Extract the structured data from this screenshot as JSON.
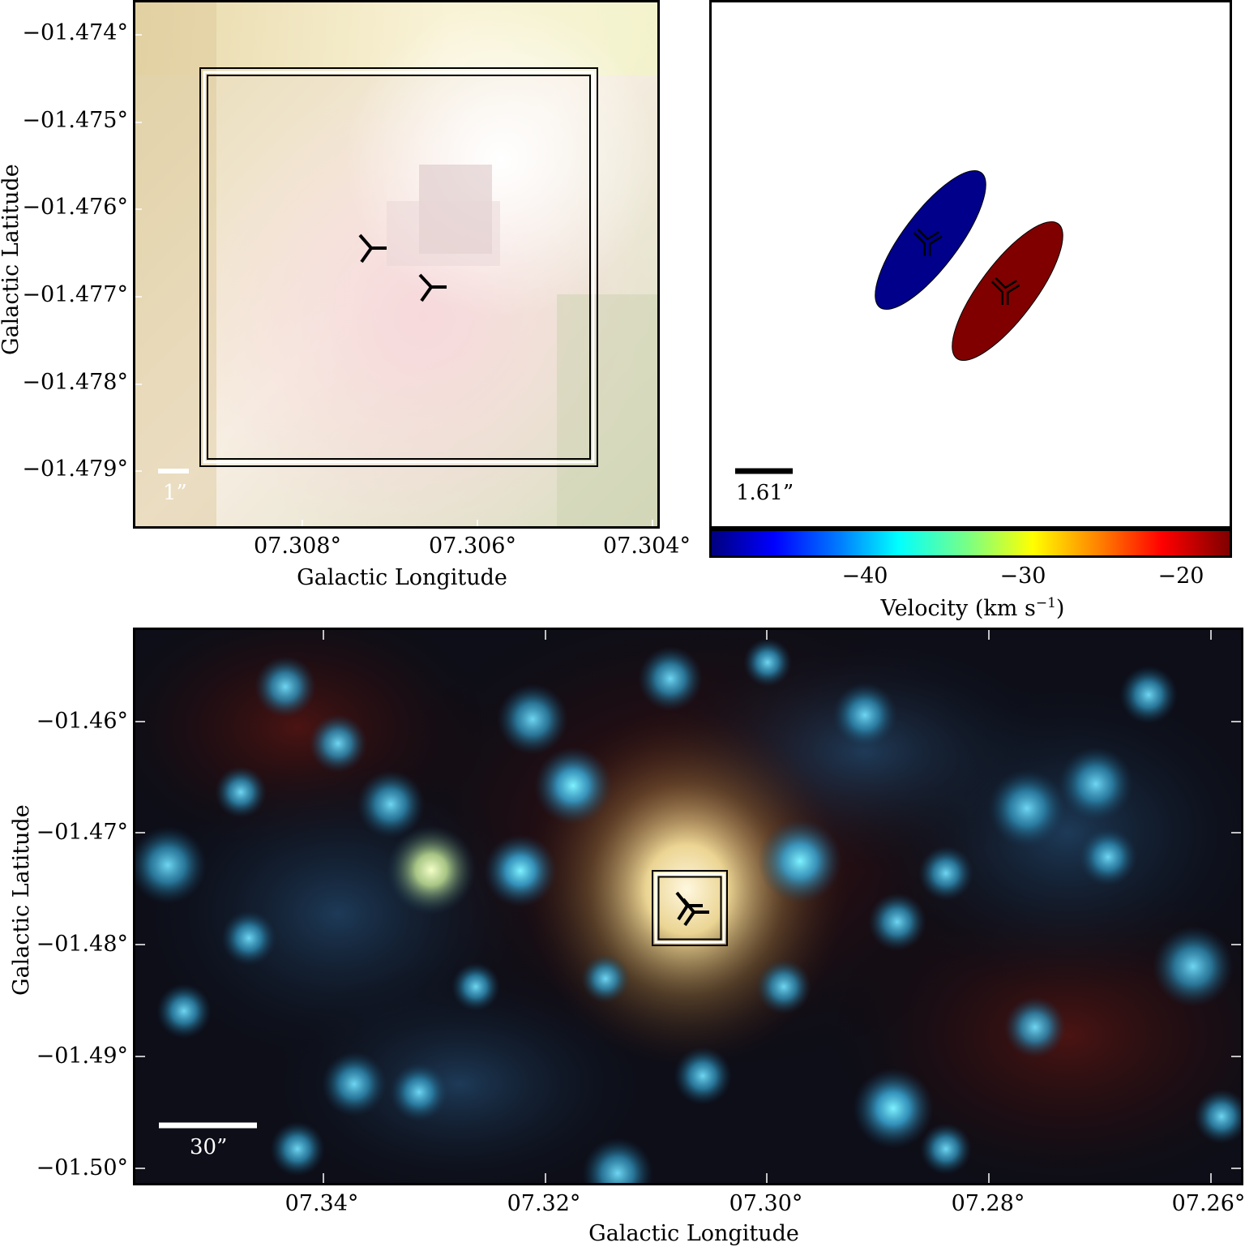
{
  "top_left": {
    "y_ticks": [
      "−01.474°",
      "−01.475°",
      "−01.476°",
      "−01.477°",
      "−01.478°",
      "−01.479°"
    ],
    "x_ticks": [
      "07.308°",
      "07.306°",
      "07.304°"
    ],
    "xlabel": "Galactic Longitude",
    "ylabel": "Galactic Latitude",
    "scalebar": "1”"
  },
  "top_right": {
    "scalebar": "1.61”",
    "colorbar_ticks": [
      "−40",
      "−30",
      "−20"
    ],
    "colorbar_label": "Velocity (km s",
    "colorbar_label_sup": "−1",
    "colorbar_label_end": ")",
    "lobes": [
      {
        "color": "#00008b"
      },
      {
        "color": "#800000"
      }
    ]
  },
  "bottom": {
    "y_ticks": [
      "−01.46°",
      "−01.47°",
      "−01.48°",
      "−01.49°",
      "−01.50°"
    ],
    "x_ticks": [
      "07.34°",
      "07.32°",
      "07.30°",
      "07.28°",
      "07.26°"
    ],
    "xlabel": "Galactic Longitude",
    "ylabel": "Galactic Latitude",
    "scalebar": "30”"
  }
}
